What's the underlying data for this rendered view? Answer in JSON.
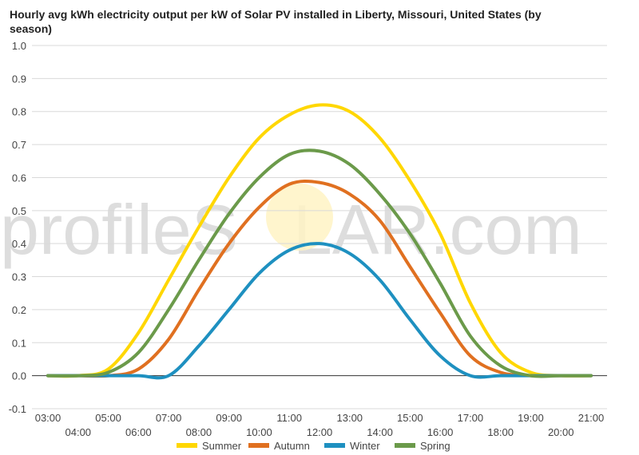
{
  "chart_data": {
    "type": "line",
    "title": "Hourly avg kWh electricity output per kW of Solar PV installed in Liberty, Missouri, United States (by season)",
    "watermark": {
      "text_before": "profileS",
      "text_after": "LAR.com"
    },
    "xlabel": "",
    "ylabel": "",
    "ylim": [
      -0.1,
      1.0
    ],
    "yticks": [
      "-0.1",
      "0.0",
      "0.1",
      "0.2",
      "0.3",
      "0.4",
      "0.5",
      "0.6",
      "0.7",
      "0.8",
      "0.9",
      "1.0"
    ],
    "x": [
      "03:00",
      "04:00",
      "05:00",
      "06:00",
      "07:00",
      "08:00",
      "09:00",
      "10:00",
      "11:00",
      "12:00",
      "13:00",
      "14:00",
      "15:00",
      "16:00",
      "17:00",
      "18:00",
      "19:00",
      "20:00",
      "21:00"
    ],
    "legend_position": "bottom",
    "grid": true,
    "series": [
      {
        "name": "Summer",
        "color": "#FFD700",
        "values": [
          0.0,
          0.0,
          0.02,
          0.13,
          0.29,
          0.45,
          0.6,
          0.72,
          0.79,
          0.82,
          0.8,
          0.72,
          0.59,
          0.43,
          0.22,
          0.07,
          0.01,
          0.0,
          0.0
        ]
      },
      {
        "name": "Autumn",
        "color": "#E07020",
        "values": [
          0.0,
          0.0,
          0.0,
          0.02,
          0.11,
          0.26,
          0.4,
          0.51,
          0.58,
          0.585,
          0.55,
          0.47,
          0.33,
          0.19,
          0.06,
          0.01,
          0.0,
          0.0,
          0.0
        ]
      },
      {
        "name": "Winter",
        "color": "#1E90C0",
        "values": [
          0.0,
          0.0,
          0.0,
          0.0,
          0.0,
          0.09,
          0.2,
          0.31,
          0.38,
          0.4,
          0.37,
          0.29,
          0.17,
          0.06,
          0.0,
          0.0,
          0.0,
          0.0,
          0.0
        ]
      },
      {
        "name": "Spring",
        "color": "#6B9A4A",
        "values": [
          0.0,
          0.0,
          0.01,
          0.07,
          0.2,
          0.35,
          0.49,
          0.6,
          0.67,
          0.68,
          0.64,
          0.55,
          0.43,
          0.28,
          0.12,
          0.03,
          0.0,
          0.0,
          0.0
        ]
      }
    ]
  }
}
